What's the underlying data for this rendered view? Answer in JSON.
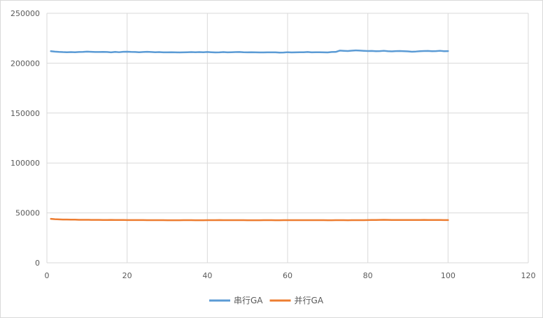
{
  "chart_data": {
    "type": "line",
    "title": "",
    "xlabel": "",
    "ylabel": "",
    "xlim": [
      0,
      120
    ],
    "ylim": [
      0,
      250000
    ],
    "x_ticks": [
      0,
      20,
      40,
      60,
      80,
      100,
      120
    ],
    "y_ticks": [
      0,
      50000,
      100000,
      150000,
      200000,
      250000
    ],
    "x_tick_labels": [
      "0",
      "20",
      "40",
      "60",
      "80",
      "100",
      "120"
    ],
    "y_tick_labels": [
      "0",
      "50000",
      "100000",
      "150000",
      "200000",
      "250000"
    ],
    "grid": true,
    "legend_position": "bottom",
    "x": [
      1,
      2,
      3,
      4,
      5,
      6,
      7,
      8,
      9,
      10,
      11,
      12,
      13,
      14,
      15,
      16,
      17,
      18,
      19,
      20,
      21,
      22,
      23,
      24,
      25,
      26,
      27,
      28,
      29,
      30,
      31,
      32,
      33,
      34,
      35,
      36,
      37,
      38,
      39,
      40,
      41,
      42,
      43,
      44,
      45,
      46,
      47,
      48,
      49,
      50,
      51,
      52,
      53,
      54,
      55,
      56,
      57,
      58,
      59,
      60,
      61,
      62,
      63,
      64,
      65,
      66,
      67,
      68,
      69,
      70,
      71,
      72,
      73,
      74,
      75,
      76,
      77,
      78,
      79,
      80,
      81,
      82,
      83,
      84,
      85,
      86,
      87,
      88,
      89,
      90,
      91,
      92,
      93,
      94,
      95,
      96,
      97,
      98,
      99,
      100
    ],
    "series": [
      {
        "name": "串行GA",
        "color": "#5b9bd5",
        "values": [
          212000,
          211600,
          211300,
          211100,
          211000,
          211100,
          211000,
          211200,
          211300,
          211600,
          211400,
          211200,
          211200,
          211300,
          211200,
          210900,
          211300,
          211000,
          211400,
          211500,
          211300,
          211200,
          211000,
          211200,
          211400,
          211200,
          211000,
          211100,
          210900,
          210900,
          211000,
          210900,
          210800,
          210900,
          211000,
          211100,
          211000,
          211100,
          211000,
          211200,
          211000,
          210800,
          210900,
          211100,
          210900,
          211000,
          211100,
          211200,
          211000,
          210900,
          211000,
          210900,
          210800,
          210800,
          210900,
          210900,
          210900,
          210600,
          210700,
          211000,
          210800,
          210900,
          211000,
          211000,
          211200,
          210900,
          211000,
          211000,
          210900,
          210800,
          211200,
          211300,
          212600,
          212400,
          212200,
          212500,
          212800,
          212600,
          212400,
          212200,
          212300,
          212000,
          212100,
          212400,
          212000,
          211800,
          212100,
          212200,
          212000,
          211800,
          211500,
          211700,
          212000,
          212200,
          212300,
          212000,
          212100,
          212400,
          212000,
          212100
        ]
      },
      {
        "name": "并行GA",
        "color": "#ed7d31",
        "values": [
          44000,
          43700,
          43500,
          43300,
          43300,
          43200,
          43200,
          43100,
          43100,
          43100,
          43000,
          43000,
          43000,
          42900,
          42900,
          43000,
          42900,
          42900,
          42900,
          42800,
          42800,
          42800,
          42800,
          42800,
          42700,
          42700,
          42700,
          42700,
          42700,
          42600,
          42600,
          42600,
          42600,
          42700,
          42700,
          42700,
          42600,
          42600,
          42600,
          42700,
          42700,
          42700,
          42800,
          42700,
          42700,
          42700,
          42700,
          42700,
          42700,
          42600,
          42600,
          42600,
          42600,
          42700,
          42700,
          42700,
          42600,
          42600,
          42700,
          42700,
          42700,
          42700,
          42700,
          42700,
          42700,
          42700,
          42700,
          42700,
          42700,
          42600,
          42600,
          42700,
          42700,
          42700,
          42600,
          42700,
          42700,
          42700,
          42700,
          42800,
          42900,
          42900,
          43000,
          43100,
          43000,
          42900,
          42900,
          42900,
          42900,
          42900,
          42900,
          42900,
          42900,
          43000,
          42900,
          42900,
          42900,
          42900,
          42800,
          42800
        ]
      }
    ]
  }
}
